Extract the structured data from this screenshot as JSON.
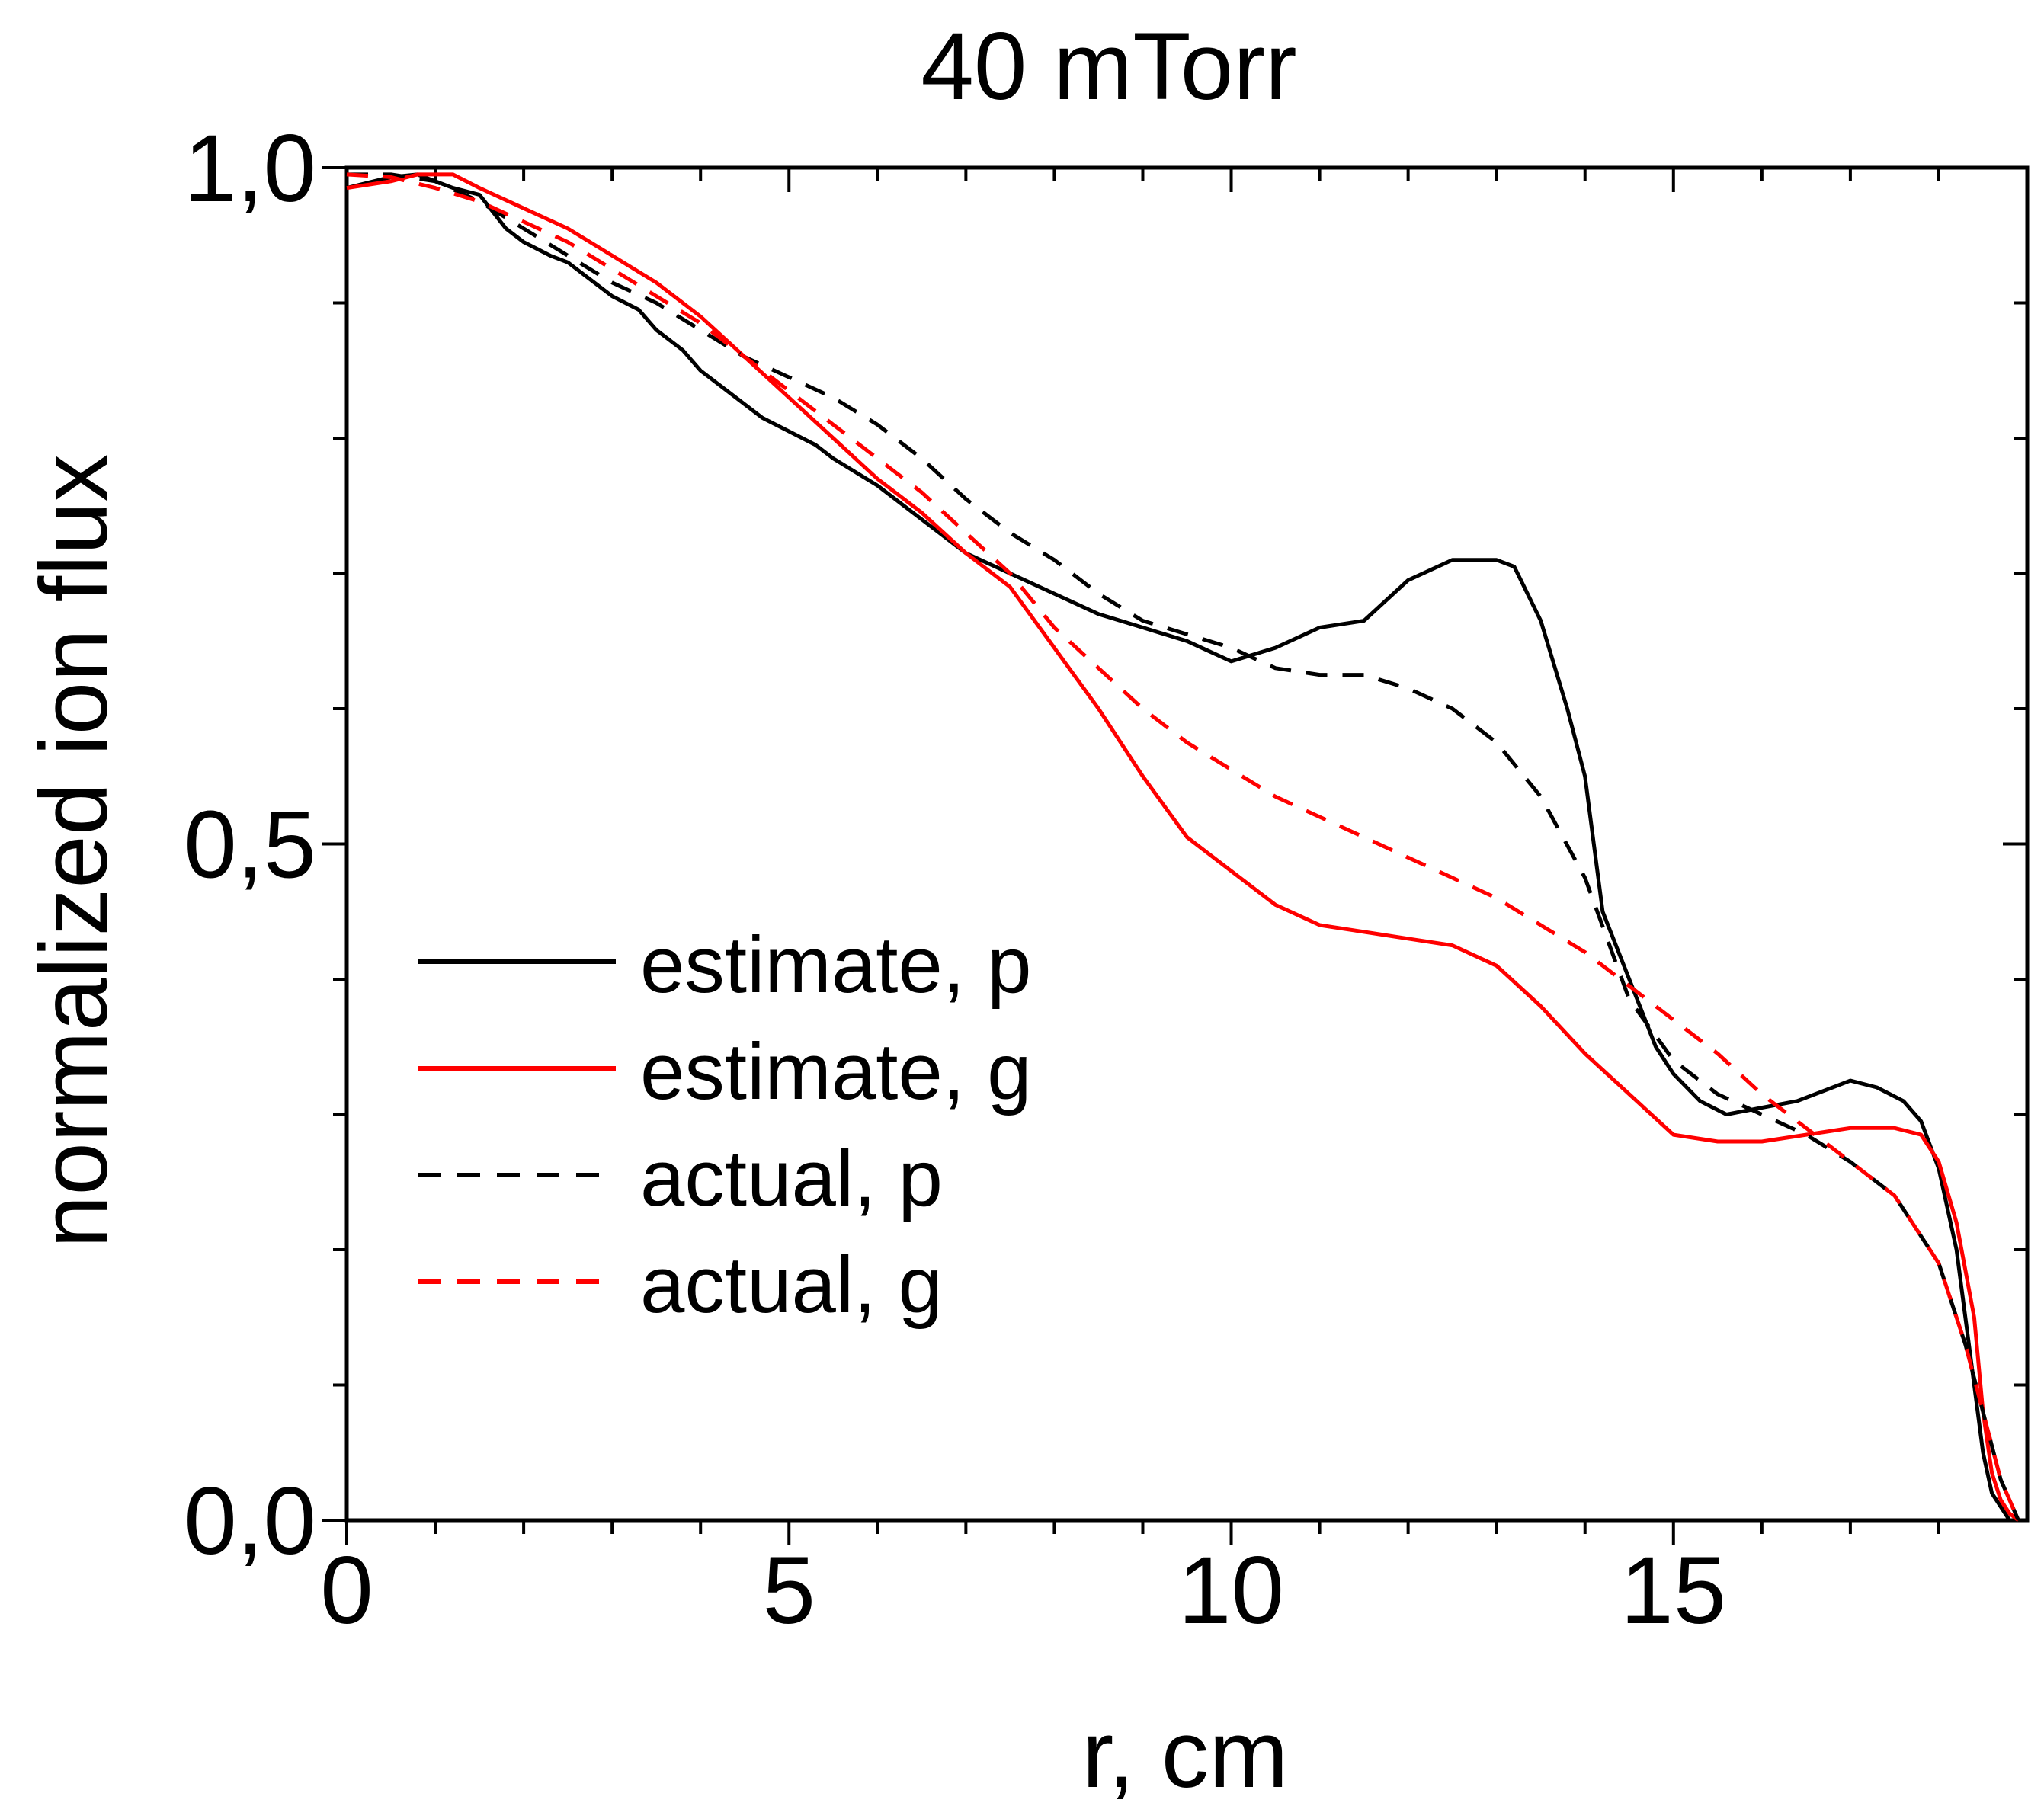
{
  "chart_data": {
    "type": "line",
    "title": "40 mTorr",
    "xlabel": "r, cm",
    "ylabel": "normalized ion flux",
    "xlim": [
      0,
      19
    ],
    "ylim": [
      0,
      1
    ],
    "x_ticks": [
      0,
      5,
      10,
      15
    ],
    "x_tick_labels": [
      "0",
      "5",
      "10",
      "15"
    ],
    "y_ticks": [
      0,
      0.5,
      1.0
    ],
    "y_tick_labels": [
      "0,0",
      "0,5",
      "1,0"
    ],
    "grid": false,
    "legend_position": "center-left",
    "series": [
      {
        "name": "estimate, p",
        "color": "#000000",
        "dash": "solid",
        "x": [
          0,
          0.5,
          0.8,
          1.2,
          1.5,
          1.8,
          2.0,
          2.3,
          2.5,
          2.8,
          3.0,
          3.3,
          3.5,
          3.8,
          4.0,
          4.3,
          4.5,
          4.7,
          5.0,
          5.3,
          5.5,
          6.0,
          6.2,
          6.5,
          7.0,
          7.5,
          8.0,
          8.5,
          9.0,
          9.5,
          10.0,
          10.5,
          11.0,
          11.5,
          12.0,
          12.5,
          13.0,
          13.2,
          13.5,
          13.8,
          14.0,
          14.2,
          14.5,
          14.8,
          15.0,
          15.3,
          15.6,
          16.0,
          16.4,
          17.0,
          17.3,
          17.6,
          17.8,
          18.0,
          18.2,
          18.4,
          18.5,
          18.6,
          18.7,
          18.8,
          18.9
        ],
        "y": [
          0.985,
          0.993,
          0.995,
          0.985,
          0.98,
          0.955,
          0.945,
          0.935,
          0.93,
          0.915,
          0.905,
          0.895,
          0.88,
          0.865,
          0.85,
          0.835,
          0.825,
          0.815,
          0.805,
          0.795,
          0.785,
          0.765,
          0.755,
          0.74,
          0.715,
          0.7,
          0.685,
          0.67,
          0.66,
          0.65,
          0.635,
          0.645,
          0.66,
          0.665,
          0.695,
          0.71,
          0.71,
          0.705,
          0.665,
          0.6,
          0.55,
          0.45,
          0.4,
          0.35,
          0.33,
          0.31,
          0.3,
          0.305,
          0.31,
          0.325,
          0.32,
          0.31,
          0.295,
          0.26,
          0.2,
          0.1,
          0.05,
          0.02,
          0.01,
          0.0,
          0.0
        ]
      },
      {
        "name": "estimate, g",
        "color": "#ff0000",
        "dash": "solid",
        "x": [
          0,
          0.5,
          0.8,
          1.2,
          1.5,
          2.0,
          2.5,
          3.0,
          3.5,
          4.0,
          4.5,
          5.0,
          5.5,
          6.0,
          6.5,
          7.0,
          7.5,
          8.0,
          8.5,
          9.0,
          9.5,
          10.0,
          10.5,
          11.0,
          11.5,
          12.0,
          12.5,
          13.0,
          13.5,
          14.0,
          14.5,
          15.0,
          15.5,
          16.0,
          16.5,
          17.0,
          17.5,
          17.8,
          18.0,
          18.2,
          18.4,
          18.5,
          18.6,
          18.7,
          18.8,
          18.9
        ],
        "y": [
          0.985,
          0.99,
          0.995,
          0.995,
          0.985,
          0.97,
          0.955,
          0.935,
          0.915,
          0.89,
          0.86,
          0.83,
          0.8,
          0.77,
          0.745,
          0.715,
          0.69,
          0.645,
          0.6,
          0.55,
          0.505,
          0.48,
          0.455,
          0.44,
          0.435,
          0.43,
          0.425,
          0.41,
          0.38,
          0.345,
          0.315,
          0.285,
          0.28,
          0.28,
          0.285,
          0.29,
          0.29,
          0.285,
          0.265,
          0.22,
          0.15,
          0.08,
          0.035,
          0.015,
          0.005,
          0.0
        ]
      },
      {
        "name": "actual, p",
        "color": "#000000",
        "dash": "dashed",
        "x": [
          0,
          0.5,
          1.0,
          1.5,
          2.0,
          2.5,
          3.0,
          3.5,
          4.0,
          4.5,
          5.0,
          5.5,
          6.0,
          6.5,
          7.0,
          7.5,
          8.0,
          8.5,
          9.0,
          9.5,
          10.0,
          10.5,
          11.0,
          11.5,
          12.0,
          12.5,
          13.0,
          13.5,
          14.0,
          14.5,
          15.0,
          15.5,
          16.0,
          16.5,
          17.0,
          17.5,
          18.0,
          18.3,
          18.5,
          18.7,
          18.9
        ],
        "y": [
          0.995,
          0.995,
          0.99,
          0.975,
          0.955,
          0.935,
          0.915,
          0.9,
          0.88,
          0.86,
          0.845,
          0.83,
          0.81,
          0.785,
          0.755,
          0.73,
          0.71,
          0.685,
          0.665,
          0.655,
          0.645,
          0.63,
          0.625,
          0.625,
          0.615,
          0.6,
          0.575,
          0.535,
          0.475,
          0.385,
          0.34,
          0.315,
          0.3,
          0.285,
          0.265,
          0.24,
          0.19,
          0.13,
          0.08,
          0.03,
          0.0
        ]
      },
      {
        "name": "actual, g",
        "color": "#ff0000",
        "dash": "dashed",
        "x": [
          0,
          0.5,
          1.0,
          1.5,
          2.0,
          2.5,
          3.0,
          3.5,
          4.0,
          4.5,
          5.0,
          5.5,
          6.0,
          6.5,
          7.0,
          7.5,
          8.0,
          8.5,
          9.0,
          9.5,
          10.0,
          10.5,
          11.0,
          11.5,
          12.0,
          12.5,
          13.0,
          13.5,
          14.0,
          14.5,
          15.0,
          15.5,
          16.0,
          16.5,
          17.0,
          17.5,
          18.0,
          18.3,
          18.5,
          18.7,
          18.9
        ],
        "y": [
          0.995,
          0.993,
          0.985,
          0.975,
          0.96,
          0.945,
          0.925,
          0.905,
          0.885,
          0.86,
          0.835,
          0.81,
          0.785,
          0.76,
          0.73,
          0.7,
          0.66,
          0.63,
          0.6,
          0.575,
          0.555,
          0.535,
          0.52,
          0.505,
          0.49,
          0.475,
          0.46,
          0.44,
          0.42,
          0.395,
          0.37,
          0.345,
          0.315,
          0.29,
          0.265,
          0.24,
          0.19,
          0.13,
          0.08,
          0.03,
          0.0
        ]
      }
    ]
  }
}
